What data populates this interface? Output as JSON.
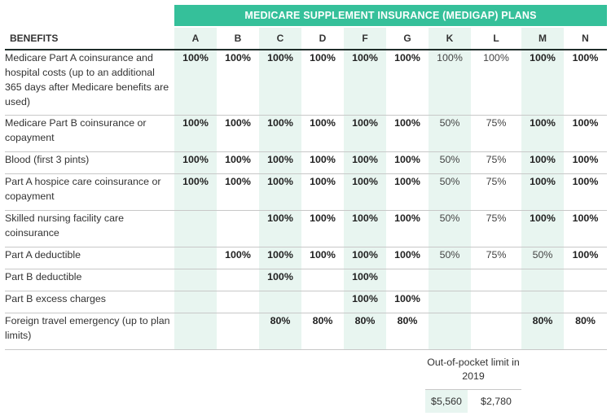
{
  "banner": "MEDICARE SUPPLEMENT INSURANCE (MEDIGAP) PLANS",
  "header": {
    "benefits": "BENEFITS",
    "plans": [
      "A",
      "B",
      "C",
      "D",
      "F",
      "G",
      "K",
      "L",
      "M",
      "N"
    ]
  },
  "rows": [
    {
      "label": "Medicare Part A coinsurance and hospital costs (up to an additional 365 days after Medicare benefits are used)",
      "values": [
        "100%",
        "100%",
        "100%",
        "100%",
        "100%",
        "100%",
        "100%",
        "100%",
        "100%",
        "100%"
      ]
    },
    {
      "label": "Medicare Part B coinsurance or copayment",
      "values": [
        "100%",
        "100%",
        "100%",
        "100%",
        "100%",
        "100%",
        "50%",
        "75%",
        "100%",
        "100%"
      ]
    },
    {
      "label": "Blood (first 3 pints)",
      "values": [
        "100%",
        "100%",
        "100%",
        "100%",
        "100%",
        "100%",
        "50%",
        "75%",
        "100%",
        "100%"
      ]
    },
    {
      "label": "Part A hospice care coinsurance or copayment",
      "values": [
        "100%",
        "100%",
        "100%",
        "100%",
        "100%",
        "100%",
        "50%",
        "75%",
        "100%",
        "100%"
      ]
    },
    {
      "label": "Skilled nursing facility care coinsurance",
      "values": [
        "",
        "",
        "100%",
        "100%",
        "100%",
        "100%",
        "50%",
        "75%",
        "100%",
        "100%"
      ]
    },
    {
      "label": "Part A deductible",
      "values": [
        "",
        "100%",
        "100%",
        "100%",
        "100%",
        "100%",
        "50%",
        "75%",
        "50%",
        "100%"
      ]
    },
    {
      "label": "Part B deductible",
      "values": [
        "",
        "",
        "100%",
        "",
        "100%",
        "",
        "",
        "",
        "",
        ""
      ]
    },
    {
      "label": "Part B excess charges",
      "values": [
        "",
        "",
        "",
        "",
        "100%",
        "100%",
        "",
        "",
        "",
        ""
      ]
    },
    {
      "label": "Foreign travel emergency (up to plan limits)",
      "values": [
        "",
        "",
        "80%",
        "80%",
        "80%",
        "80%",
        "",
        "",
        "80%",
        "80%"
      ]
    }
  ],
  "out_of_pocket": {
    "title": "Out-of-pocket limit in 2019",
    "k": "$5,560",
    "l": "$2,780"
  }
}
